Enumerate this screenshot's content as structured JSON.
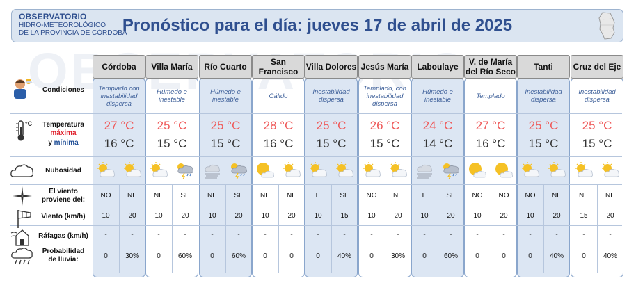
{
  "header": {
    "logo_line1": "OBSERVATORIO",
    "logo_line2": "HIDRO-METEOROLÓGICO",
    "logo_line3": "DE LA PROVINCIA DE CÓRDOBA",
    "title": "Pronóstico para el día: jueves 17 de abril de 2025",
    "watermark": "OBSERVATORIO"
  },
  "rows": {
    "condiciones": "Condiciones",
    "temperatura": "Temperatura",
    "maxima": "máxima",
    "y": "y",
    "minima": "mínima",
    "nubosidad": "Nubosidad",
    "viento_l1": "El viento",
    "viento_l2": "proviene del:",
    "viento_kmh": "Viento (km/h)",
    "rafagas": "Ráfagas (km/h)",
    "prob_l1": "Probabilidad",
    "prob_l2": "de lluvia:"
  },
  "temp_unit": "°C",
  "cities": [
    {
      "name": "Córdoba",
      "cond": "Templado con inestabilidad dispersa",
      "max": "27 °C",
      "min": "16 °C",
      "wx": [
        "sun-cloud",
        "sun-cloud"
      ],
      "dir": [
        "NO",
        "NE"
      ],
      "speed": [
        "10",
        "20"
      ],
      "gust": [
        "-",
        "-"
      ],
      "rain": [
        "0",
        "30%"
      ]
    },
    {
      "name": "Villa María",
      "cond": "Húmedo e inestable",
      "max": "25 °C",
      "min": "15 °C",
      "wx": [
        "sun-cloud",
        "storm"
      ],
      "dir": [
        "NE",
        "SE"
      ],
      "speed": [
        "10",
        "20"
      ],
      "gust": [
        "-",
        "-"
      ],
      "rain": [
        "0",
        "60%"
      ]
    },
    {
      "name": "Río Cuarto",
      "cond": "Húmedo e inestable",
      "max": "25 °C",
      "min": "15 °C",
      "wx": [
        "fog",
        "storm"
      ],
      "dir": [
        "NE",
        "SE"
      ],
      "speed": [
        "10",
        "20"
      ],
      "gust": [
        "-",
        "-"
      ],
      "rain": [
        "0",
        "60%"
      ]
    },
    {
      "name": "San Francisco",
      "cond": "Cálido",
      "max": "28 °C",
      "min": "16 °C",
      "wx": [
        "sun-cloud-big",
        "sun-cloud"
      ],
      "dir": [
        "NE",
        "NE"
      ],
      "speed": [
        "10",
        "20"
      ],
      "gust": [
        "-",
        "-"
      ],
      "rain": [
        "0",
        "0"
      ]
    },
    {
      "name": "Villa Dolores",
      "cond": "Inestabilidad dispersa",
      "max": "25 °C",
      "min": "15 °C",
      "wx": [
        "sun-cloud",
        "sun-cloud"
      ],
      "dir": [
        "E",
        "SE"
      ],
      "speed": [
        "10",
        "15"
      ],
      "gust": [
        "-",
        "-"
      ],
      "rain": [
        "0",
        "40%"
      ]
    },
    {
      "name": "Jesús María",
      "cond": "Templado, con inestabilidad dispersa",
      "max": "26 °C",
      "min": "15 °C",
      "wx": [
        "sun-cloud",
        "sun-cloud"
      ],
      "dir": [
        "NO",
        "NE"
      ],
      "speed": [
        "10",
        "20"
      ],
      "gust": [
        "-",
        "-"
      ],
      "rain": [
        "0",
        "30%"
      ]
    },
    {
      "name": "Laboulaye",
      "cond": "Húmedo e inestable",
      "max": "24 °C",
      "min": "14 °C",
      "wx": [
        "fog",
        "storm"
      ],
      "dir": [
        "E",
        "SE"
      ],
      "speed": [
        "10",
        "20"
      ],
      "gust": [
        "-",
        "-"
      ],
      "rain": [
        "0",
        "60%"
      ]
    },
    {
      "name": "V. de María del Río Seco",
      "cond": "Templado",
      "max": "27 °C",
      "min": "16 °C",
      "wx": [
        "sun-cloud-big",
        "sun-cloud-big"
      ],
      "dir": [
        "NO",
        "NO"
      ],
      "speed": [
        "10",
        "20"
      ],
      "gust": [
        "-",
        "-"
      ],
      "rain": [
        "0",
        "0"
      ]
    },
    {
      "name": "Tanti",
      "cond": "Inestabilidad dispersa",
      "max": "25 °C",
      "min": "15 °C",
      "wx": [
        "sun-cloud",
        "sun-cloud"
      ],
      "dir": [
        "NO",
        "NE"
      ],
      "speed": [
        "10",
        "20"
      ],
      "gust": [
        "-",
        "-"
      ],
      "rain": [
        "0",
        "40%"
      ]
    },
    {
      "name": "Cruz del Eje",
      "cond": "Inestabilidad dispersa",
      "max": "25 °C",
      "min": "15 °C",
      "wx": [
        "sun-cloud",
        "sun-cloud"
      ],
      "dir": [
        "NE",
        "NE"
      ],
      "speed": [
        "15",
        "20"
      ],
      "gust": [
        "-",
        "-"
      ],
      "rain": [
        "0",
        "40%"
      ]
    }
  ],
  "colors": {
    "accent": "#2f4f8f",
    "max_temp": "#ef5a5a",
    "min_temp": "#333333",
    "column_shade": "#dce6f3"
  }
}
